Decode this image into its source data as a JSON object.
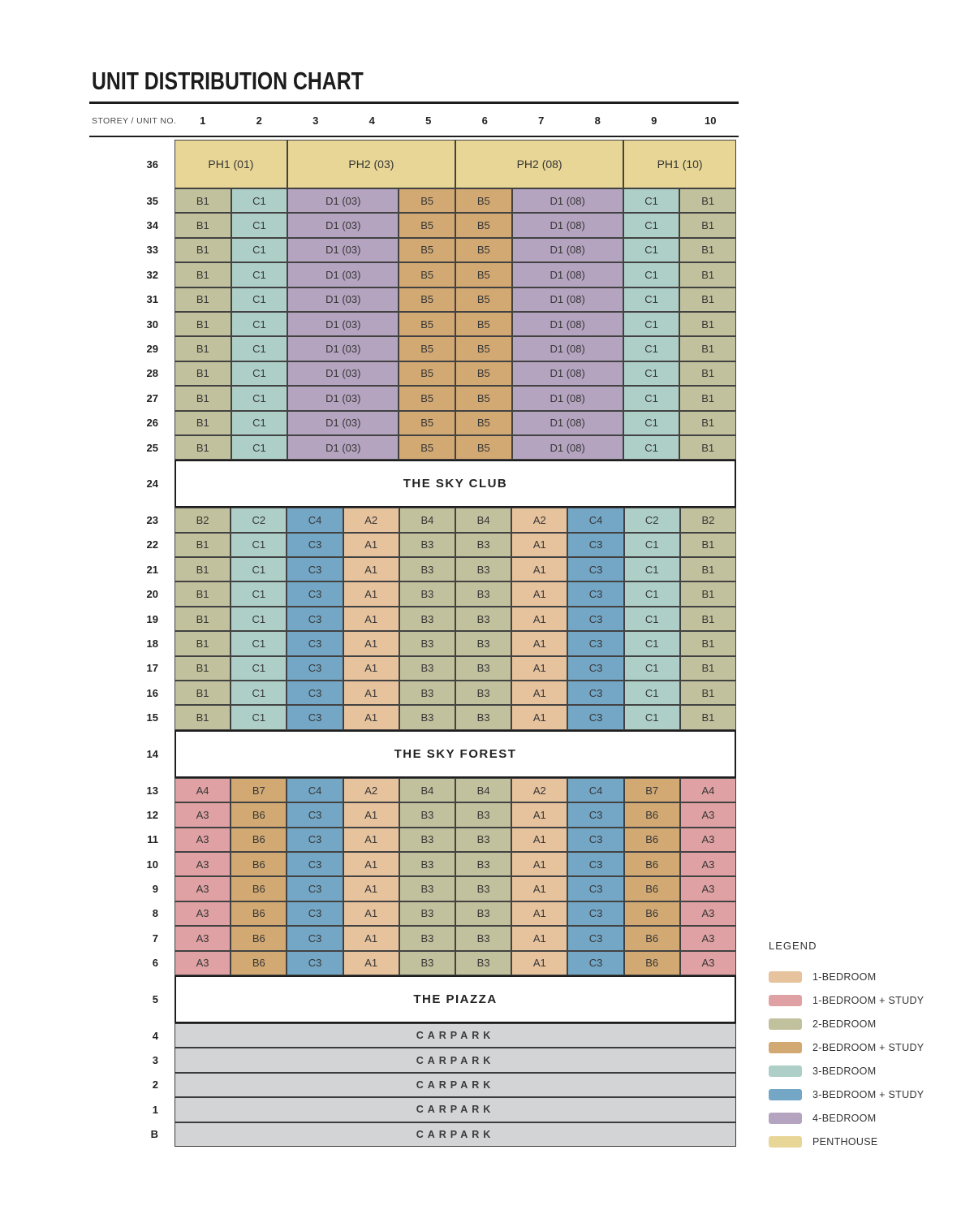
{
  "title": "UNIT DISTRIBUTION CHART",
  "header": {
    "label": "STOREY / UNIT NO.",
    "columns": [
      "1",
      "2",
      "3",
      "4",
      "5",
      "6",
      "7",
      "8",
      "9",
      "10"
    ]
  },
  "colors": {
    "1BR": "#e6c29d",
    "1BRS": "#dfa1a3",
    "2BR": "#c2c19d",
    "2BRS": "#d2a973",
    "3BR": "#adcfc8",
    "3BRS": "#74a7c6",
    "4BR": "#b5a4c0",
    "PH": "#e7d695",
    "CARPARK": "#d3d4d6",
    "BANNER": "#ffffff"
  },
  "chart_data": {
    "type": "table",
    "title": "UNIT DISTRIBUTION CHART",
    "row_templates": {
      "penthouse": [
        [
          "PH1 (01)",
          "PH",
          2
        ],
        [
          "PH2 (03)",
          "PH",
          3
        ],
        [
          "PH2 (08)",
          "PH",
          3
        ],
        [
          "PH1 (10)",
          "PH",
          2
        ]
      ],
      "upper": [
        [
          "B1",
          "2BR",
          1
        ],
        [
          "C1",
          "3BR",
          1
        ],
        [
          "D1 (03)",
          "4BR",
          2
        ],
        [
          "B5",
          "2BRS",
          1
        ],
        [
          "B5",
          "2BRS",
          1
        ],
        [
          "D1 (08)",
          "4BR",
          2
        ],
        [
          "C1",
          "3BR",
          1
        ],
        [
          "B1",
          "2BR",
          1
        ]
      ],
      "mid_top": [
        [
          "B2",
          "2BR",
          1
        ],
        [
          "C2",
          "3BR",
          1
        ],
        [
          "C4",
          "3BRS",
          1
        ],
        [
          "A2",
          "1BR",
          1
        ],
        [
          "B4",
          "2BR",
          1
        ],
        [
          "B4",
          "2BR",
          1
        ],
        [
          "A2",
          "1BR",
          1
        ],
        [
          "C4",
          "3BRS",
          1
        ],
        [
          "C2",
          "3BR",
          1
        ],
        [
          "B2",
          "2BR",
          1
        ]
      ],
      "mid": [
        [
          "B1",
          "2BR",
          1
        ],
        [
          "C1",
          "3BR",
          1
        ],
        [
          "C3",
          "3BRS",
          1
        ],
        [
          "A1",
          "1BR",
          1
        ],
        [
          "B3",
          "2BR",
          1
        ],
        [
          "B3",
          "2BR",
          1
        ],
        [
          "A1",
          "1BR",
          1
        ],
        [
          "C3",
          "3BRS",
          1
        ],
        [
          "C1",
          "3BR",
          1
        ],
        [
          "B1",
          "2BR",
          1
        ]
      ],
      "low_top": [
        [
          "A4",
          "1BRS",
          1
        ],
        [
          "B7",
          "2BRS",
          1
        ],
        [
          "C4",
          "3BRS",
          1
        ],
        [
          "A2",
          "1BR",
          1
        ],
        [
          "B4",
          "2BR",
          1
        ],
        [
          "B4",
          "2BR",
          1
        ],
        [
          "A2",
          "1BR",
          1
        ],
        [
          "C4",
          "3BRS",
          1
        ],
        [
          "B7",
          "2BRS",
          1
        ],
        [
          "A4",
          "1BRS",
          1
        ]
      ],
      "low": [
        [
          "A3",
          "1BRS",
          1
        ],
        [
          "B6",
          "2BRS",
          1
        ],
        [
          "C3",
          "3BRS",
          1
        ],
        [
          "A1",
          "1BR",
          1
        ],
        [
          "B3",
          "2BR",
          1
        ],
        [
          "B3",
          "2BR",
          1
        ],
        [
          "A1",
          "1BR",
          1
        ],
        [
          "C3",
          "3BRS",
          1
        ],
        [
          "B6",
          "2BRS",
          1
        ],
        [
          "A3",
          "1BRS",
          1
        ]
      ]
    },
    "rows": [
      {
        "storey": "36",
        "kind": "units",
        "template": "penthouse",
        "tall": true
      },
      {
        "storey": "35",
        "kind": "units",
        "template": "upper"
      },
      {
        "storey": "34",
        "kind": "units",
        "template": "upper"
      },
      {
        "storey": "33",
        "kind": "units",
        "template": "upper"
      },
      {
        "storey": "32",
        "kind": "units",
        "template": "upper"
      },
      {
        "storey": "31",
        "kind": "units",
        "template": "upper"
      },
      {
        "storey": "30",
        "kind": "units",
        "template": "upper"
      },
      {
        "storey": "29",
        "kind": "units",
        "template": "upper"
      },
      {
        "storey": "28",
        "kind": "units",
        "template": "upper"
      },
      {
        "storey": "27",
        "kind": "units",
        "template": "upper"
      },
      {
        "storey": "26",
        "kind": "units",
        "template": "upper"
      },
      {
        "storey": "25",
        "kind": "units",
        "template": "upper"
      },
      {
        "storey": "24",
        "kind": "banner",
        "label": "THE SKY CLUB"
      },
      {
        "storey": "23",
        "kind": "units",
        "template": "mid_top"
      },
      {
        "storey": "22",
        "kind": "units",
        "template": "mid"
      },
      {
        "storey": "21",
        "kind": "units",
        "template": "mid"
      },
      {
        "storey": "20",
        "kind": "units",
        "template": "mid"
      },
      {
        "storey": "19",
        "kind": "units",
        "template": "mid"
      },
      {
        "storey": "18",
        "kind": "units",
        "template": "mid"
      },
      {
        "storey": "17",
        "kind": "units",
        "template": "mid"
      },
      {
        "storey": "16",
        "kind": "units",
        "template": "mid"
      },
      {
        "storey": "15",
        "kind": "units",
        "template": "mid"
      },
      {
        "storey": "14",
        "kind": "banner",
        "label": "THE SKY FOREST"
      },
      {
        "storey": "13",
        "kind": "units",
        "template": "low_top"
      },
      {
        "storey": "12",
        "kind": "units",
        "template": "low"
      },
      {
        "storey": "11",
        "kind": "units",
        "template": "low"
      },
      {
        "storey": "10",
        "kind": "units",
        "template": "low"
      },
      {
        "storey": "9",
        "kind": "units",
        "template": "low"
      },
      {
        "storey": "8",
        "kind": "units",
        "template": "low"
      },
      {
        "storey": "7",
        "kind": "units",
        "template": "low"
      },
      {
        "storey": "6",
        "kind": "units",
        "template": "low"
      },
      {
        "storey": "5",
        "kind": "banner",
        "label": "THE PIAZZA"
      },
      {
        "storey": "4",
        "kind": "carpark",
        "label": "CARPARK"
      },
      {
        "storey": "3",
        "kind": "carpark",
        "label": "CARPARK"
      },
      {
        "storey": "2",
        "kind": "carpark",
        "label": "CARPARK"
      },
      {
        "storey": "1",
        "kind": "carpark",
        "label": "CARPARK"
      },
      {
        "storey": "B",
        "kind": "carpark",
        "label": "CARPARK"
      }
    ]
  },
  "legend": {
    "title": "LEGEND",
    "items": [
      {
        "label": "1-BEDROOM",
        "key": "1BR"
      },
      {
        "label": "1-BEDROOM + STUDY",
        "key": "1BRS"
      },
      {
        "label": "2-BEDROOM",
        "key": "2BR"
      },
      {
        "label": "2-BEDROOM + STUDY",
        "key": "2BRS"
      },
      {
        "label": "3-BEDROOM",
        "key": "3BR"
      },
      {
        "label": "3-BEDROOM + STUDY",
        "key": "3BRS"
      },
      {
        "label": "4-BEDROOM",
        "key": "4BR"
      },
      {
        "label": "PENTHOUSE",
        "key": "PH"
      }
    ]
  }
}
